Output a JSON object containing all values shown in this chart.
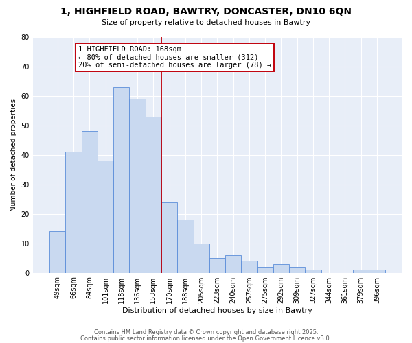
{
  "title": "1, HIGHFIELD ROAD, BAWTRY, DONCASTER, DN10 6QN",
  "subtitle": "Size of property relative to detached houses in Bawtry",
  "xlabel": "Distribution of detached houses by size in Bawtry",
  "ylabel": "Number of detached properties",
  "bar_labels": [
    "49sqm",
    "66sqm",
    "84sqm",
    "101sqm",
    "118sqm",
    "136sqm",
    "153sqm",
    "170sqm",
    "188sqm",
    "205sqm",
    "223sqm",
    "240sqm",
    "257sqm",
    "275sqm",
    "292sqm",
    "309sqm",
    "327sqm",
    "344sqm",
    "361sqm",
    "379sqm",
    "396sqm"
  ],
  "bar_heights": [
    14,
    41,
    48,
    38,
    63,
    59,
    53,
    24,
    18,
    10,
    5,
    6,
    4,
    2,
    3,
    2,
    1,
    0,
    0,
    1,
    1
  ],
  "bar_color": "#c9d9f0",
  "bar_edge_color": "#5b8dd9",
  "vline_color": "#c0000b",
  "vline_position": 6.5,
  "annotation_title": "1 HIGHFIELD ROAD: 168sqm",
  "annotation_line1": "← 80% of detached houses are smaller (312)",
  "annotation_line2": "20% of semi-detached houses are larger (78) →",
  "annotation_box_edgecolor": "#c0000b",
  "ylim": [
    0,
    80
  ],
  "yticks": [
    0,
    10,
    20,
    30,
    40,
    50,
    60,
    70,
    80
  ],
  "footer1": "Contains HM Land Registry data © Crown copyright and database right 2025.",
  "footer2": "Contains public sector information licensed under the Open Government Licence v3.0.",
  "bg_color": "#ffffff",
  "plot_bg_color": "#e8eef8",
  "grid_color": "#ffffff",
  "title_fontsize": 10,
  "subtitle_fontsize": 8,
  "xlabel_fontsize": 8,
  "ylabel_fontsize": 7.5,
  "tick_fontsize": 7,
  "footer_fontsize": 6,
  "annotation_fontsize": 7.5
}
